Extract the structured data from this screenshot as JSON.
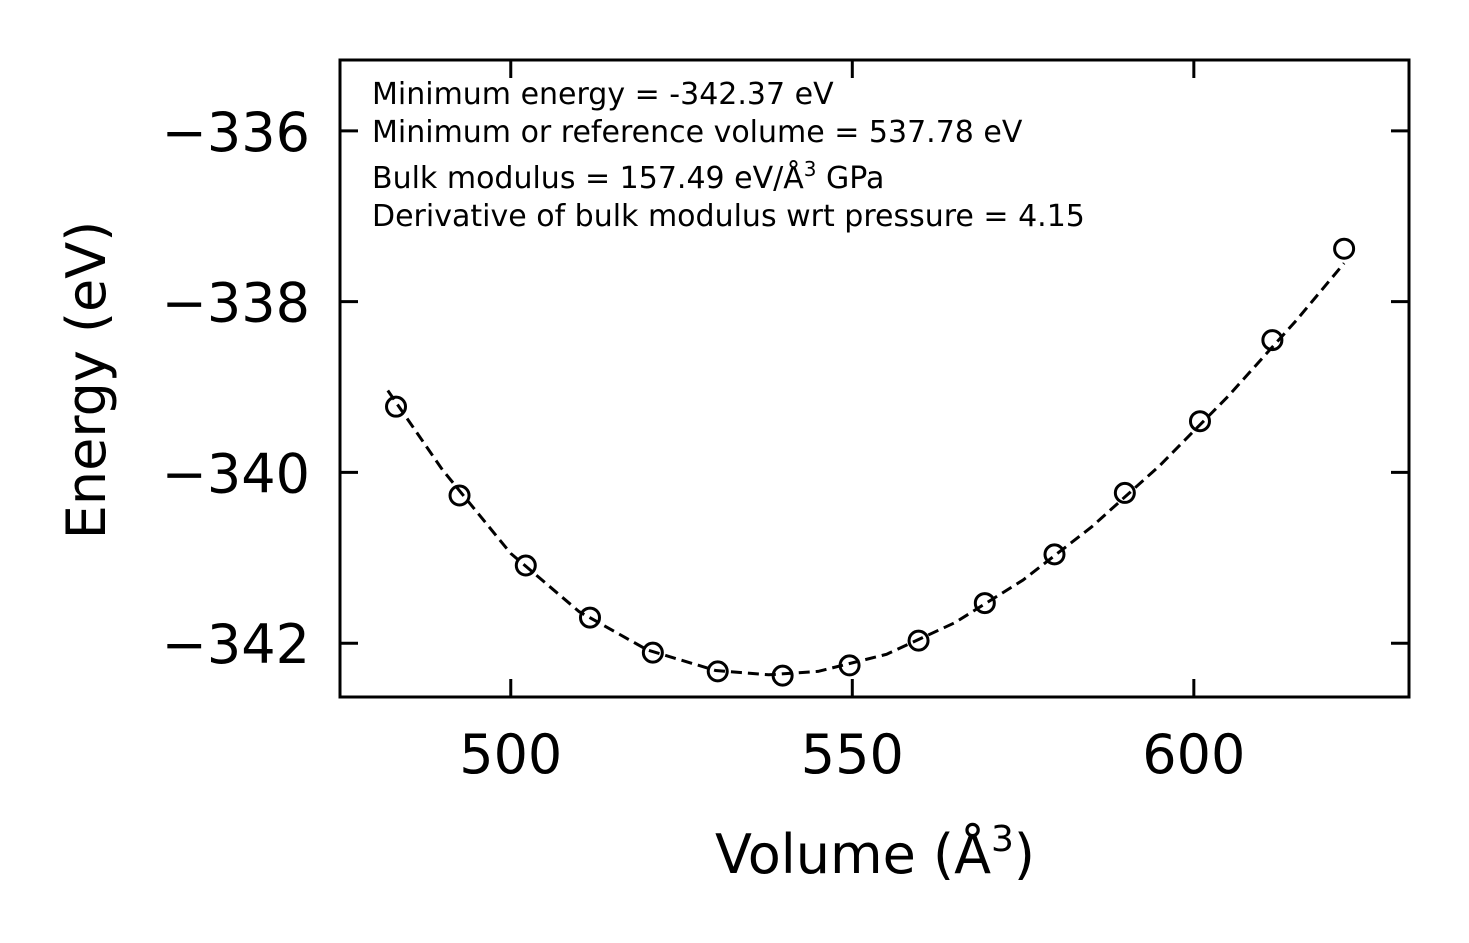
{
  "chart_data": {
    "type": "scatter",
    "title": "",
    "xlabel": "Volume (Å",
    "xlabel_sup": "3",
    "xlabel_end": ")",
    "ylabel": "Energy (eV)",
    "xlim": [
      475,
      631.5
    ],
    "ylim": [
      -342.63,
      -335.17
    ],
    "xticks": [
      500,
      550,
      600
    ],
    "yticks": [
      -336,
      -338,
      -340,
      -342
    ],
    "series": [
      {
        "name": "data",
        "marker": "open-circle",
        "x": [
          483.2,
          492.5,
          502.2,
          511.6,
          520.8,
          530.3,
          539.8,
          549.6,
          559.7,
          569.4,
          579.6,
          589.9,
          600.9,
          611.5,
          622.0
        ],
        "y": [
          -339.23,
          -340.27,
          -341.09,
          -341.7,
          -342.11,
          -342.33,
          -342.38,
          -342.26,
          -341.97,
          -341.53,
          -340.96,
          -340.24,
          -339.4,
          -338.45,
          -337.38
        ]
      },
      {
        "name": "fit",
        "style": "dashed",
        "x": [
          482.0,
          490.0,
          500.0,
          510.0,
          520.0,
          530.0,
          537.78,
          545.0,
          555.0,
          565.0,
          575.0,
          585.0,
          595.0,
          605.0,
          615.0,
          622.0
        ],
        "y": [
          -339.04,
          -339.97,
          -340.95,
          -341.63,
          -342.08,
          -342.32,
          -342.37,
          -342.33,
          -342.13,
          -341.76,
          -341.26,
          -340.64,
          -339.92,
          -339.11,
          -338.22,
          -337.55
        ]
      }
    ],
    "annotations": [
      "Minimum energy = -342.37 eV",
      "Minimum or reference volume = 537.78 eV",
      "Bulk modulus = 157.49 eV/Å",
      "3",
      " GPa",
      "Derivative of bulk modulus wrt pressure = 4.15"
    ]
  }
}
